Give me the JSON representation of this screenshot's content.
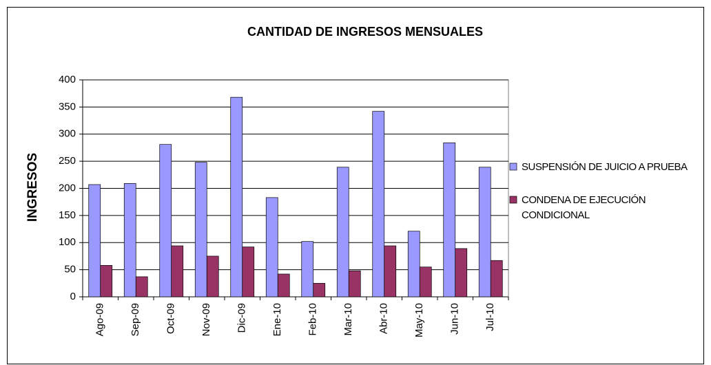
{
  "chart_data": {
    "type": "bar",
    "title": "CANTIDAD DE INGRESOS MENSUALES",
    "y_label": "INGRESOS",
    "categories": [
      "Ago-09",
      "Sep-09",
      "Oct-09",
      "Nov-09",
      "Dic-09",
      "Ene-10",
      "Feb-10",
      "Mar-10",
      "Abr-10",
      "May-10",
      "Jun-10",
      "Jul-10"
    ],
    "series": [
      {
        "name": "SUSPENSIÓN DE JUICIO A PRUEBA",
        "color": "#9999ff",
        "values": [
          207,
          209,
          281,
          248,
          368,
          183,
          102,
          239,
          342,
          121,
          284,
          239
        ]
      },
      {
        "name": "CONDENA DE EJECUCIÓN CONDICIONAL",
        "color": "#993366",
        "values": [
          58,
          37,
          94,
          75,
          92,
          42,
          25,
          48,
          94,
          55,
          89,
          67
        ]
      }
    ],
    "ylim": [
      0,
      400
    ],
    "yticks": [
      0,
      50,
      100,
      150,
      200,
      250,
      300,
      350,
      400
    ],
    "grid": true,
    "legend": "right"
  }
}
